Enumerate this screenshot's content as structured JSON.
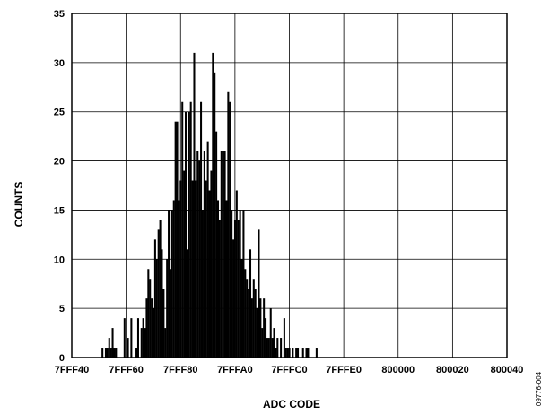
{
  "figure_code": "09776-004",
  "chart_data": {
    "type": "bar",
    "title": "",
    "xlabel": "ADC CODE",
    "ylabel": "COUNTS",
    "xlim": [
      -192,
      64
    ],
    "ylim": [
      0,
      35
    ],
    "x_ticks": [
      {
        "value": -192,
        "label": "7FFF40"
      },
      {
        "value": -160,
        "label": "7FFF60"
      },
      {
        "value": -128,
        "label": "7FFF80"
      },
      {
        "value": -96,
        "label": "7FFFA0"
      },
      {
        "value": -64,
        "label": "7FFFC0"
      },
      {
        "value": -32,
        "label": "7FFFE0"
      },
      {
        "value": 0,
        "label": "800000"
      },
      {
        "value": 32,
        "label": "800020"
      },
      {
        "value": 64,
        "label": "800040"
      }
    ],
    "y_ticks": [
      0,
      5,
      10,
      15,
      20,
      25,
      30,
      35
    ],
    "grid": true,
    "bar_color": "#000000",
    "x_start_label": "7FFF52",
    "values": [
      1,
      0,
      1,
      1,
      2,
      1,
      3,
      1,
      1,
      0,
      0,
      0,
      0,
      4,
      0,
      2,
      0,
      4,
      0,
      0,
      1,
      4,
      0,
      3,
      4,
      3,
      6,
      9,
      8,
      6,
      5,
      12,
      10,
      13,
      14,
      11,
      7,
      3,
      10,
      15,
      9,
      15,
      16,
      24,
      24,
      16,
      18,
      26,
      19,
      25,
      11,
      25,
      26,
      18,
      31,
      18,
      21,
      20,
      26,
      15,
      21,
      18,
      22,
      17,
      19,
      31,
      29,
      23,
      16,
      14,
      21,
      21,
      21,
      16,
      27,
      26,
      15,
      12,
      14,
      17,
      14,
      15,
      10,
      15,
      9,
      8,
      7,
      11,
      6,
      8,
      7,
      5,
      13,
      6,
      3,
      6,
      4,
      2,
      2,
      5,
      2,
      3,
      1,
      2,
      0,
      2,
      0,
      4,
      1,
      1,
      1,
      0,
      1,
      0,
      1,
      1,
      0,
      0,
      1,
      0,
      1,
      1,
      0,
      0,
      0,
      0,
      1
    ]
  }
}
